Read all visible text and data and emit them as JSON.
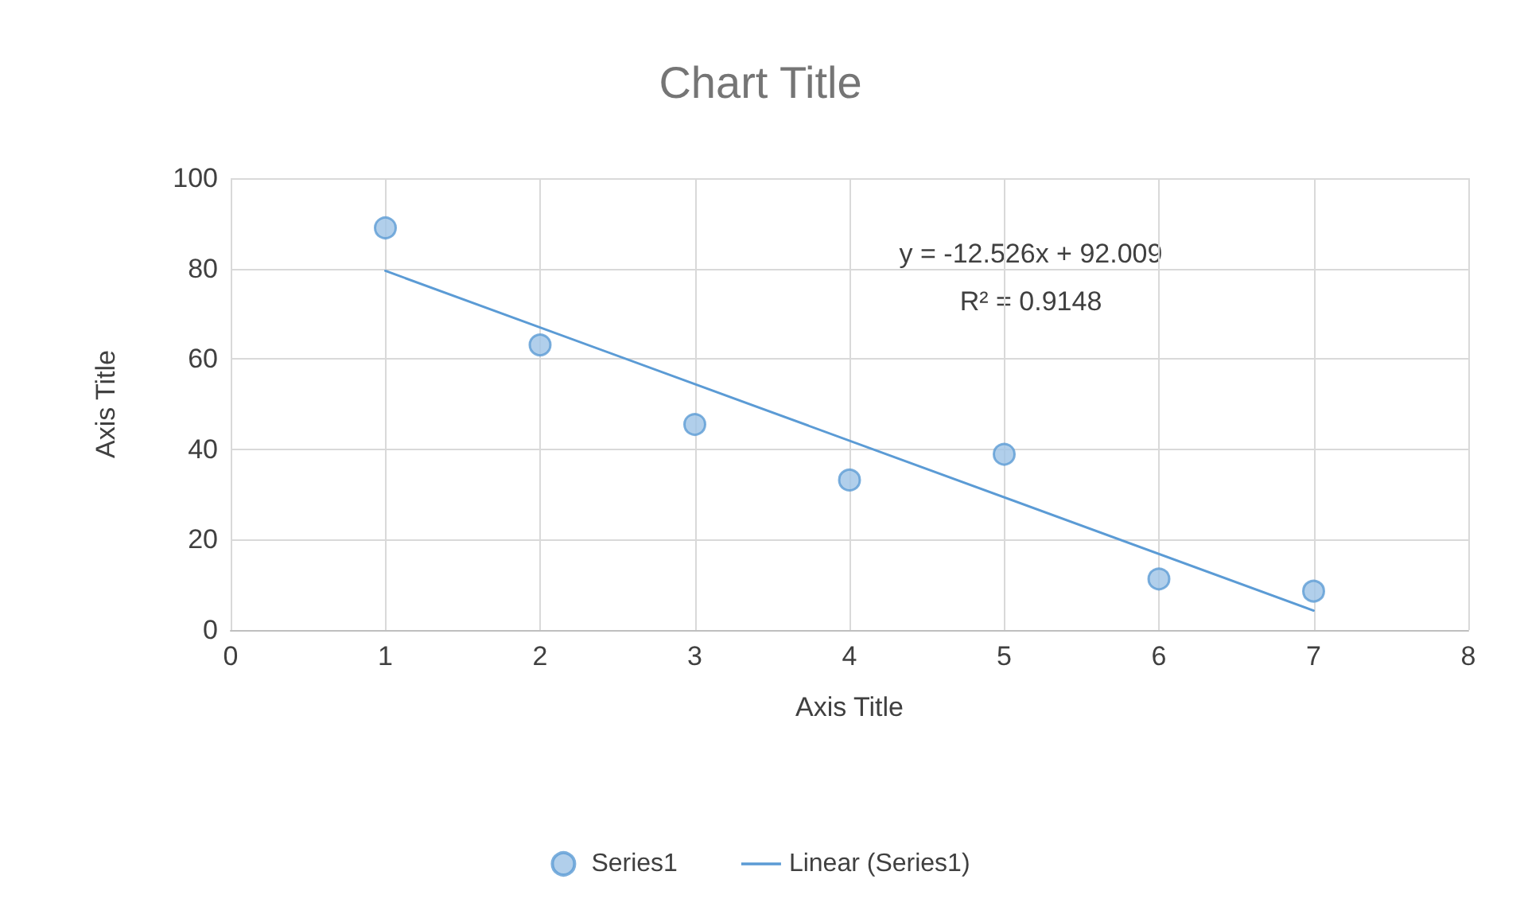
{
  "chart_data": {
    "type": "scatter",
    "title": "Chart Title",
    "xlabel": "Axis Title",
    "ylabel": "Axis Title",
    "x": [
      1,
      2,
      3,
      4,
      5,
      6,
      7
    ],
    "series": [
      {
        "name": "Series1",
        "color": "#9dc3e6",
        "values": [
          89,
          63.1,
          45.5,
          33.2,
          38.9,
          11.3,
          8.6
        ]
      },
      {
        "name": "Linear (Series1)",
        "type": "line",
        "marker": "none",
        "color": "#5b9bd5",
        "x": [
          1,
          7
        ],
        "values": [
          79.5,
          4.3
        ]
      }
    ],
    "annotations": [
      "y = -12.526x + 92.009",
      "R² = 0.9148"
    ],
    "xlim": [
      0,
      8
    ],
    "xticks": [
      0,
      1,
      2,
      3,
      4,
      5,
      6,
      7,
      8
    ],
    "ylim": [
      0,
      100
    ],
    "yticks": [
      0,
      20,
      40,
      60,
      80,
      100
    ],
    "grid": true,
    "legend": "bottom",
    "marker": "circle",
    "line_style": "solid"
  }
}
